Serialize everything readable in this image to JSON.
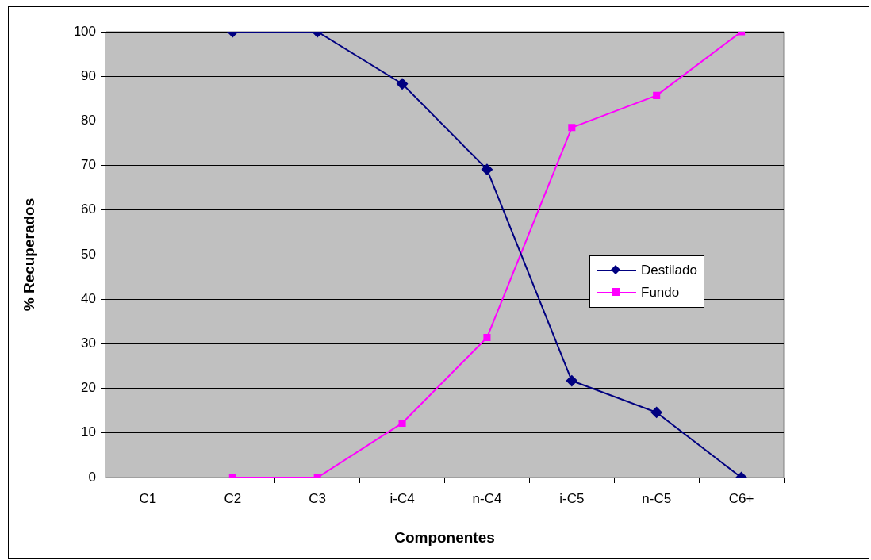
{
  "chart_data": {
    "type": "line",
    "xlabel": "Componentes",
    "ylabel": "% Recuperados",
    "categories": [
      "C1",
      "C2",
      "C3",
      "i-C4",
      "n-C4",
      "i-C5",
      "n-C5",
      "C6+"
    ],
    "series": [
      {
        "name": "Destilado",
        "color": "#000080",
        "marker": "diamond",
        "values": [
          null,
          100,
          100,
          88.3,
          69.1,
          21.7,
          14.6,
          0
        ]
      },
      {
        "name": "Fundo",
        "color": "#ff00ff",
        "marker": "square",
        "values": [
          null,
          0,
          0,
          12.2,
          31.4,
          78.5,
          85.7,
          100
        ]
      }
    ],
    "ylim": [
      0,
      100
    ],
    "yticks": [
      0,
      10,
      20,
      30,
      40,
      50,
      60,
      70,
      80,
      90,
      100
    ],
    "grid": "y",
    "legend": "right"
  }
}
